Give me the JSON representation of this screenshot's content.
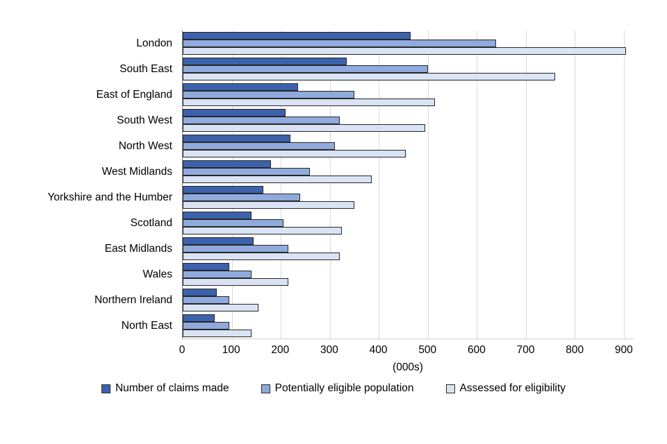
{
  "chart_data": {
    "type": "bar",
    "orientation": "horizontal",
    "title": "",
    "xlabel": "(000s)",
    "ylabel": "",
    "xlim": [
      0,
      920
    ],
    "xticks": [
      0,
      100,
      200,
      300,
      400,
      500,
      600,
      700,
      800,
      900
    ],
    "grid": true,
    "legend_position": "bottom",
    "bar_border_color": "#262626",
    "categories": [
      "London",
      "South East",
      "East of England",
      "South West",
      "North West",
      "West Midlands",
      "Yorkshire and the Humber",
      "Scotland",
      "East Midlands",
      "Wales",
      "Northern Ireland",
      "North East"
    ],
    "series": [
      {
        "name": "Number of claims made",
        "color": "#3D62AD",
        "values": [
          465,
          335,
          235,
          210,
          220,
          180,
          165,
          140,
          145,
          95,
          70,
          65
        ]
      },
      {
        "name": "Potentially eligible population",
        "color": "#8FAADC",
        "values": [
          640,
          500,
          350,
          320,
          310,
          260,
          240,
          205,
          215,
          140,
          95,
          95
        ]
      },
      {
        "name": "Assessed for eligibility",
        "color": "#DAE3F3",
        "values": [
          905,
          760,
          515,
          495,
          455,
          385,
          350,
          325,
          320,
          215,
          155,
          140
        ]
      }
    ]
  }
}
